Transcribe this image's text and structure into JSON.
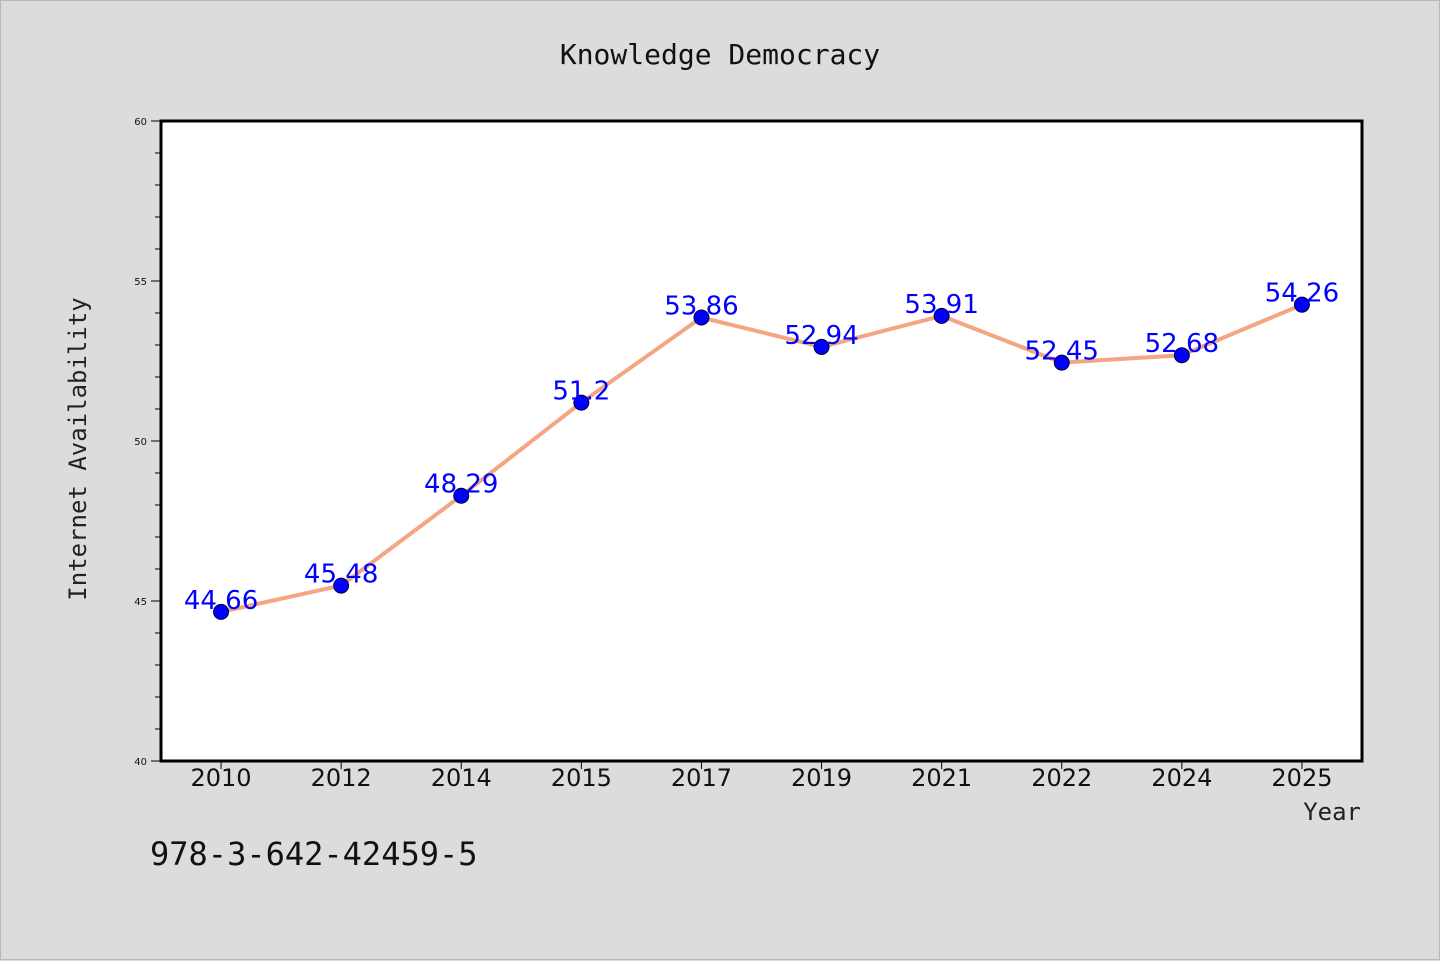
{
  "chart_data": {
    "type": "line",
    "title": "Knowledge Democracy",
    "xlabel": "Year",
    "ylabel": "Internet Availability",
    "categories": [
      "2010",
      "2012",
      "2014",
      "2015",
      "2017",
      "2019",
      "2021",
      "2022",
      "2024",
      "2025"
    ],
    "series": [
      {
        "values": [
          44.66,
          45.48,
          48.29,
          51.2,
          53.86,
          52.94,
          53.91,
          52.45,
          52.68,
          54.26
        ],
        "labels": [
          "44.66",
          "45.48",
          "48.29",
          "51.2",
          "53.86",
          "52.94",
          "53.91",
          "52.45",
          "52.68",
          "54.26"
        ],
        "line_color": "#f4a582",
        "marker_color": "#0000ff"
      }
    ],
    "ylim": [
      40,
      60
    ],
    "yticks": [
      "40",
      "45",
      "50",
      "55",
      "60"
    ],
    "grid": false,
    "legend": "none"
  },
  "footer_text": "978-3-642-42459-5"
}
